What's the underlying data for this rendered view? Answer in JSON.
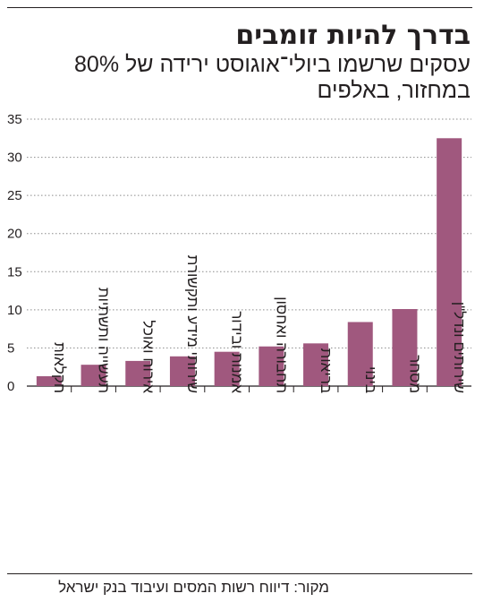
{
  "header": {
    "title": "בדרך להיות זומבים",
    "subtitle": "עסקים שרשמו ביולי־אוגוסט ירידה של 80% במחזור, באלפים"
  },
  "footer": {
    "source": "מקור: דיווח רשות המסים ועיבוד בנק ישראל"
  },
  "colors": {
    "bar": "#a0587e",
    "text": "#231f20",
    "grid": "#8c8c8c"
  },
  "chart_data": {
    "type": "bar",
    "title": "בדרך להיות זומבים",
    "subtitle": "עסקים שרשמו ביולי־אוגוסט ירידה של 80% במחזור, באלפים",
    "categories": [
      "חקלאות",
      "תעשייה ותשתיות",
      "אירוח ואוכל",
      "שירותי מידע ותקשורת",
      "אמנות ובידור",
      "תחבורה ואחסון",
      "בריאות",
      "בינוי",
      "מסחר",
      "שירותים ונדל\"ן"
    ],
    "values": [
      1.3,
      2.8,
      3.3,
      3.9,
      4.5,
      5.2,
      5.6,
      8.4,
      10.1,
      32.5
    ],
    "yticks": [
      0,
      5,
      10,
      15,
      20,
      25,
      30,
      35
    ],
    "ylim": [
      0,
      35
    ],
    "grid": true,
    "xlabel": "",
    "ylabel": ""
  }
}
